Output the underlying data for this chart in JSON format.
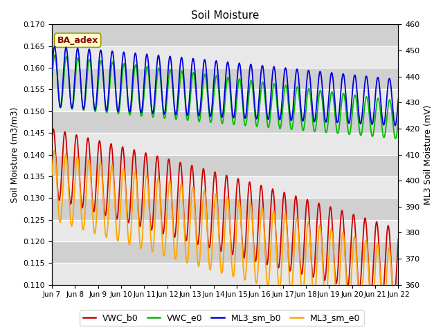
{
  "title": "Soil Moisture",
  "ylabel_left": "Soil Moisture (m3/m3)",
  "ylabel_right": "ML3 Soil Moisture (mV)",
  "ylim_left": [
    0.11,
    0.17
  ],
  "ylim_right": [
    360,
    460
  ],
  "xtick_labels": [
    "Jun 7",
    "Jun 8",
    "Jun 9",
    "Jun 10",
    "Jun 11",
    "Jun 12",
    "Jun 13",
    "Jun 14",
    "Jun 15",
    "Jun 16",
    "Jun 17",
    "Jun 18",
    "Jun 19",
    "Jun 20",
    "Jun 21",
    "Jun 22"
  ],
  "annotation_text": "BA_adex",
  "annotation_color": "#8B0000",
  "annotation_bg": "#FFFFCC",
  "bg_light": "#E8E8E8",
  "bg_dark": "#D0D0D0",
  "line_colors": {
    "VWC_b0": "#CC0000",
    "VWC_e0": "#00BB00",
    "ML3_sm_b0": "#0000DD",
    "ML3_sm_e0": "#FFA500"
  }
}
